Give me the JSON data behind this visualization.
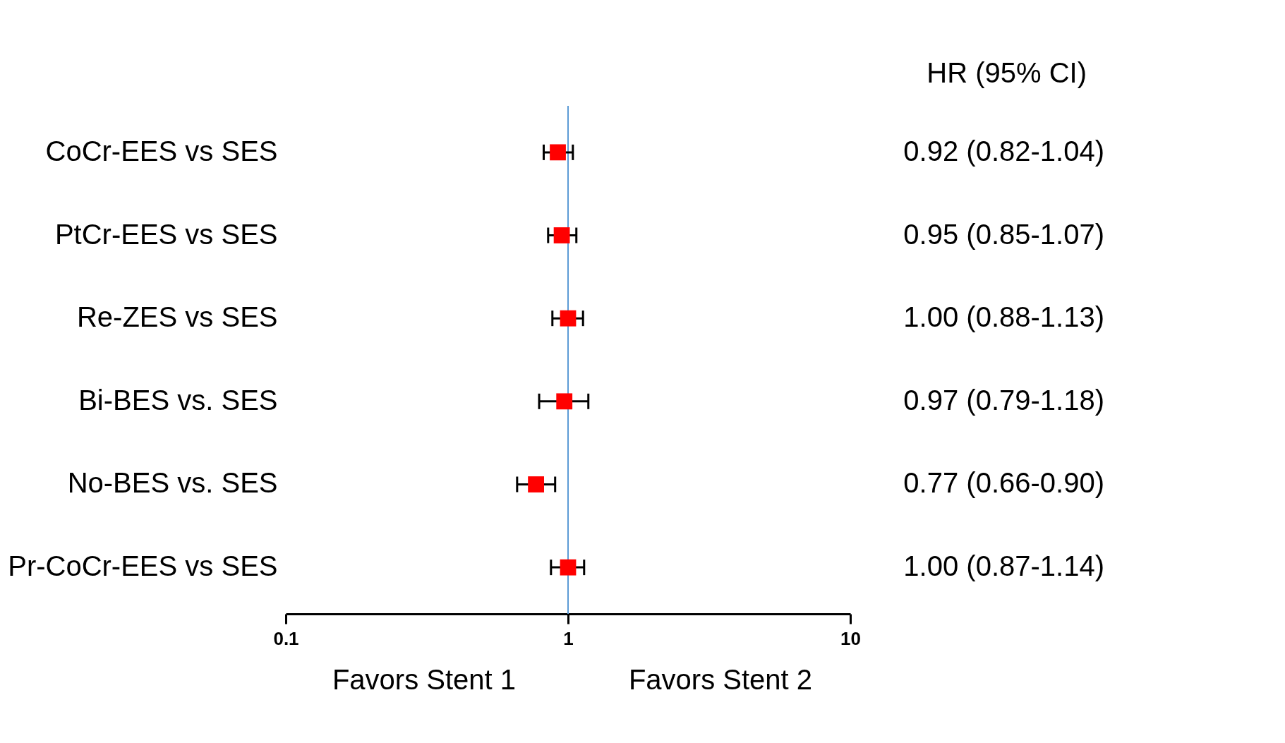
{
  "chart_data": {
    "type": "scatter",
    "orientation": "horizontal",
    "categories": [
      "CoCr-EES vs SES",
      "PtCr-EES vs SES",
      "Re-ZES vs SES",
      "Bi-BES vs. SES",
      "No-BES vs. SES",
      "Pr-CoCr-EES vs SES"
    ],
    "values": [
      0.92,
      0.95,
      1.0,
      0.97,
      0.77,
      1.0
    ],
    "errors": [
      [
        0.82,
        1.04
      ],
      [
        0.85,
        1.07
      ],
      [
        0.88,
        1.13
      ],
      [
        0.79,
        1.18
      ],
      [
        0.66,
        0.9
      ],
      [
        0.87,
        1.14
      ]
    ],
    "value_labels": [
      "0.92 (0.82-1.04)",
      "0.95 (0.85-1.07)",
      "1.00 (0.88-1.13)",
      "0.97 (0.79-1.18)",
      "0.77 (0.66-0.90)",
      "1.00 (0.87-1.14)"
    ],
    "color": "#ff0000",
    "marker": "square",
    "log": "x",
    "grid": false,
    "xlim": [
      0.1,
      10
    ],
    "xticks": [
      0.1,
      1,
      10
    ],
    "ref_lines": [
      {
        "axis": "x",
        "value": 1,
        "color": "#5b9bd5"
      }
    ],
    "annotations": [
      "HR (95% CI)",
      "Favors Stent 1",
      "Favors Stent 2"
    ]
  }
}
